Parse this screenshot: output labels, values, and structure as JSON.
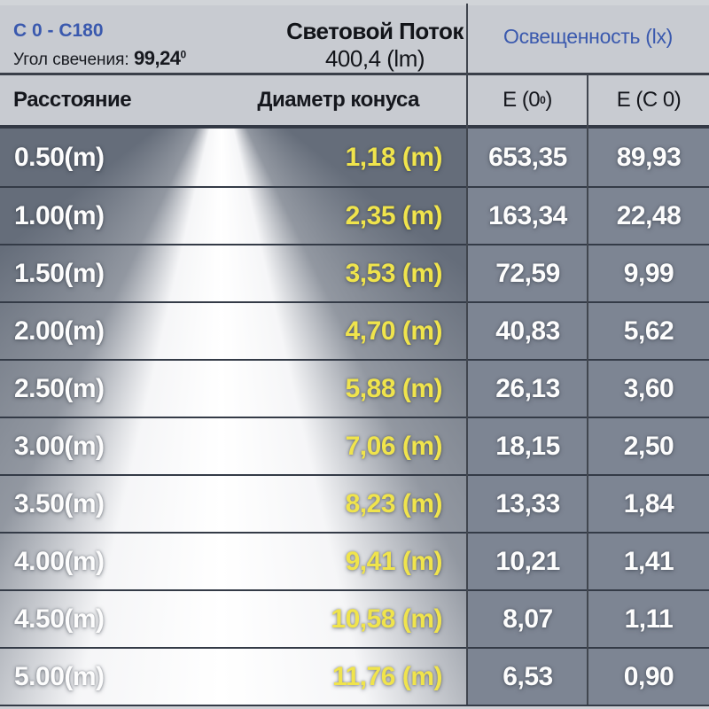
{
  "header": {
    "c_plane_range": "С 0 - С180",
    "beam_angle_label": "Угол свечения:",
    "beam_angle_value": "99,24",
    "beam_angle_sup": "0",
    "flux_title": "Световой Поток",
    "flux_value": "400,4 (lm)",
    "illuminance_title": "Освещенность (lx)"
  },
  "columns": {
    "distance": "Расстояние",
    "cone_diameter": "Диаметр конуса",
    "e0_pre": "E (0",
    "e0_sup": "0",
    "e0_post": ")",
    "ec0": "E (C 0)"
  },
  "colors": {
    "accent_blue": "#3a59ae",
    "accent_yellow": "#f0e44c",
    "header_bg": "#c8cbd1",
    "body_dark": "#656d7a",
    "e_column_bg": "#7d8593"
  },
  "table": {
    "rows": [
      {
        "distance": "0.50(m)",
        "diameter": "1,18 (m)",
        "e0": "653,35",
        "ec0": "89,93"
      },
      {
        "distance": "1.00(m)",
        "diameter": "2,35 (m)",
        "e0": "163,34",
        "ec0": "22,48"
      },
      {
        "distance": "1.50(m)",
        "diameter": "3,53 (m)",
        "e0": "72,59",
        "ec0": "9,99"
      },
      {
        "distance": "2.00(m)",
        "diameter": "4,70 (m)",
        "e0": "40,83",
        "ec0": "5,62"
      },
      {
        "distance": "2.50(m)",
        "diameter": "5,88 (m)",
        "e0": "26,13",
        "ec0": "3,60"
      },
      {
        "distance": "3.00(m)",
        "diameter": "7,06 (m)",
        "e0": "18,15",
        "ec0": "2,50"
      },
      {
        "distance": "3.50(m)",
        "diameter": "8,23 (m)",
        "e0": "13,33",
        "ec0": "1,84"
      },
      {
        "distance": "4.00(m)",
        "diameter": "9,41 (m)",
        "e0": "10,21",
        "ec0": "1,41"
      },
      {
        "distance": "4.50(m)",
        "diameter": "10,58 (m)",
        "e0": "8,07",
        "ec0": "1,11"
      },
      {
        "distance": "5.00(m)",
        "diameter": "11,76 (m)",
        "e0": "6,53",
        "ec0": "0,90"
      }
    ]
  }
}
